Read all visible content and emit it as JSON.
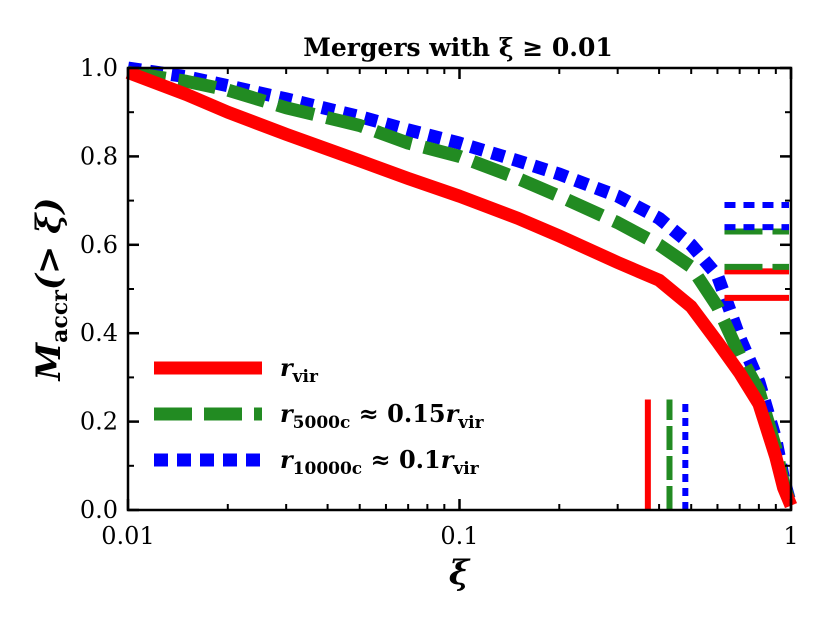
{
  "chart_data": {
    "type": "line",
    "title": "Mergers with ξ ≥ 0.01",
    "xlabel": "ξ",
    "ylabel": "M_accr(> ξ)",
    "xscale": "log",
    "xlim": [
      0.01,
      1
    ],
    "ylim": [
      0.0,
      1.0
    ],
    "x_tick_labels": [
      "0.01",
      "0.1",
      "1"
    ],
    "y_tick_labels": [
      "0.0",
      "0.2",
      "0.4",
      "0.6",
      "0.8",
      "1.0"
    ],
    "legend_placement": "lower-left",
    "series": [
      {
        "name": "r_vir",
        "legend_parts": [
          [
            "r",
            "i"
          ],
          [
            "vir",
            "sub"
          ]
        ],
        "color": "#ff0000",
        "style": "solid",
        "x": [
          0.01,
          0.015,
          0.02,
          0.03,
          0.05,
          0.07,
          0.1,
          0.15,
          0.2,
          0.3,
          0.4,
          0.5,
          0.6,
          0.7,
          0.8,
          0.9,
          0.95,
          1.0
        ],
        "y": [
          0.99,
          0.94,
          0.9,
          0.85,
          0.79,
          0.75,
          0.71,
          0.66,
          0.62,
          0.56,
          0.52,
          0.46,
          0.38,
          0.31,
          0.24,
          0.12,
          0.05,
          0.01
        ],
        "marker_x": 0.37,
        "side_marks_y": [
          0.54,
          0.48
        ]
      },
      {
        "name": "r_5000c ≈ 0.15 r_vir",
        "legend_parts": [
          [
            "r",
            "i"
          ],
          [
            "5000c",
            "sub"
          ],
          [
            " ≈ 0.15",
            "n"
          ],
          [
            "r",
            "i"
          ],
          [
            "vir",
            "sub"
          ]
        ],
        "color": "#228b22",
        "style": "dashed",
        "x": [
          0.01,
          0.015,
          0.02,
          0.03,
          0.05,
          0.07,
          0.1,
          0.15,
          0.2,
          0.3,
          0.4,
          0.5,
          0.6,
          0.7,
          0.8,
          0.9,
          0.95,
          1.0
        ],
        "y": [
          0.99,
          0.97,
          0.95,
          0.91,
          0.87,
          0.83,
          0.8,
          0.75,
          0.71,
          0.65,
          0.6,
          0.55,
          0.46,
          0.35,
          0.27,
          0.14,
          0.06,
          0.01
        ],
        "marker_x": 0.43,
        "side_marks_y": [
          0.63,
          0.55
        ]
      },
      {
        "name": "r_10000c ≈ 0.1 r_vir",
        "legend_parts": [
          [
            "r",
            "i"
          ],
          [
            "10000c",
            "sub"
          ],
          [
            " ≈ 0.1",
            "n"
          ],
          [
            "r",
            "i"
          ],
          [
            "vir",
            "sub"
          ]
        ],
        "color": "#0000ff",
        "style": "dotted",
        "x": [
          0.01,
          0.015,
          0.02,
          0.03,
          0.05,
          0.07,
          0.1,
          0.15,
          0.2,
          0.3,
          0.4,
          0.5,
          0.6,
          0.7,
          0.8,
          0.9,
          0.95,
          1.0
        ],
        "y": [
          1.0,
          0.98,
          0.96,
          0.93,
          0.89,
          0.86,
          0.83,
          0.79,
          0.76,
          0.71,
          0.66,
          0.6,
          0.53,
          0.39,
          0.29,
          0.16,
          0.07,
          0.01
        ],
        "marker_x": 0.48,
        "side_marks_y": [
          0.69,
          0.64
        ]
      }
    ]
  }
}
